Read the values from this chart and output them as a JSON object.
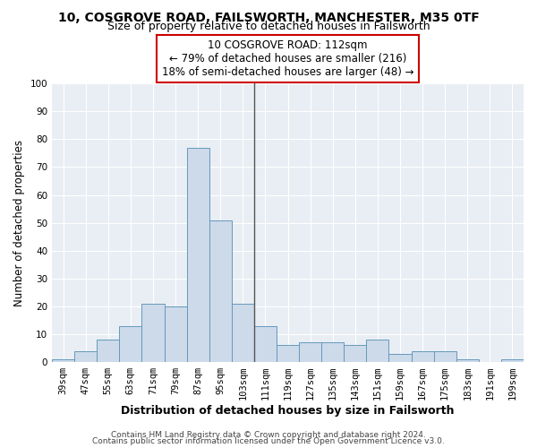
{
  "title": "10, COSGROVE ROAD, FAILSWORTH, MANCHESTER, M35 0TF",
  "subtitle": "Size of property relative to detached houses in Failsworth",
  "xlabel": "Distribution of detached houses by size in Failsworth",
  "ylabel": "Number of detached properties",
  "bin_labels": [
    "39sqm",
    "47sqm",
    "55sqm",
    "63sqm",
    "71sqm",
    "79sqm",
    "87sqm",
    "95sqm",
    "103sqm",
    "111sqm",
    "119sqm",
    "127sqm",
    "135sqm",
    "143sqm",
    "151sqm",
    "159sqm",
    "167sqm",
    "175sqm",
    "183sqm",
    "191sqm",
    "199sqm"
  ],
  "bar_values": [
    1,
    4,
    8,
    13,
    21,
    20,
    77,
    51,
    21,
    13,
    6,
    7,
    7,
    6,
    8,
    3,
    4,
    4,
    1,
    0,
    1
  ],
  "bar_color": "#ccdaea",
  "bar_edge_color": "#6699bb",
  "vline_x_index": 9,
  "vline_color": "#555555",
  "annotation_title": "10 COSGROVE ROAD: 112sqm",
  "annotation_line1": "← 79% of detached houses are smaller (216)",
  "annotation_line2": "18% of semi-detached houses are larger (48) →",
  "annotation_box_color": "#ffffff",
  "annotation_box_edge_color": "#cc0000",
  "ylim": [
    0,
    100
  ],
  "yticks": [
    0,
    10,
    20,
    30,
    40,
    50,
    60,
    70,
    80,
    90,
    100
  ],
  "footer1": "Contains HM Land Registry data © Crown copyright and database right 2024.",
  "footer2": "Contains public sector information licensed under the Open Government Licence v3.0.",
  "background_color": "#ffffff",
  "plot_bg_color": "#e8eef4",
  "grid_color": "#ffffff",
  "title_fontsize": 10,
  "subtitle_fontsize": 9,
  "xlabel_fontsize": 9,
  "ylabel_fontsize": 8.5,
  "tick_fontsize": 7.5,
  "footer_fontsize": 6.5
}
